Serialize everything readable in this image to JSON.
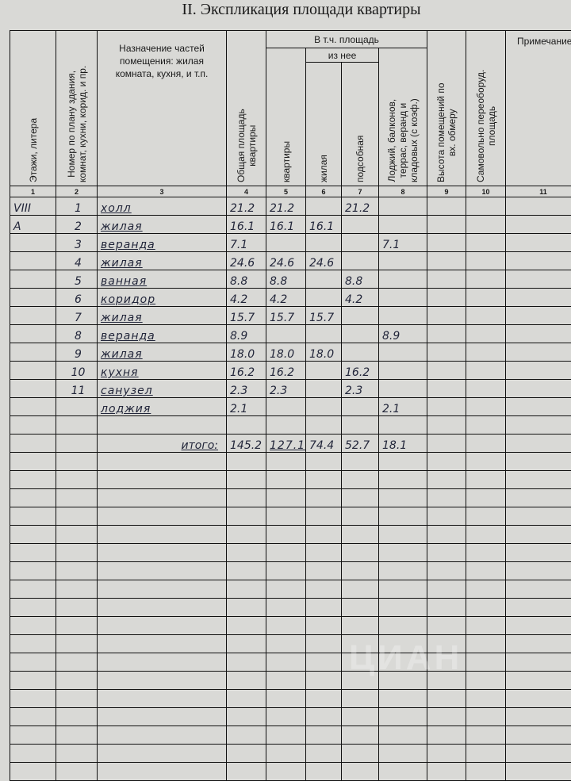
{
  "title": "II. Экспликация площади квартиры",
  "headers": {
    "col1": "Этажи, литера",
    "col2": "Номер по плану здания,\nкомнат, кухни, корид. и пр.",
    "col3": "Назначение частей помещения: жилая комната, кухня, и т.п.",
    "col4": "Общая площадь\nквартиры",
    "group": "В т.ч. площадь",
    "col5": "квартиры",
    "subgroup": "из нее",
    "col6": "жилая",
    "col7": "подсобная",
    "col8": "Лоджий, балконов,\nтеррас, веранд и\nкладовых (с коэф.)",
    "col9": "Высота помещений по\nвх. обмеру",
    "col10": "Самовольно переоборуд.\nплощадь",
    "col11": "Примечание"
  },
  "column_numbers": [
    "1",
    "2",
    "3",
    "4",
    "5",
    "6",
    "7",
    "8",
    "9",
    "10",
    "11"
  ],
  "rows": [
    {
      "floor": "VIII",
      "num": "1",
      "name": "холл",
      "total": "21.2",
      "flat": "21.2",
      "living": "",
      "aux": "21.2",
      "loggia": ""
    },
    {
      "floor": "А",
      "num": "2",
      "name": "жилая",
      "total": "16.1",
      "flat": "16.1",
      "living": "16.1",
      "aux": "",
      "loggia": ""
    },
    {
      "floor": "",
      "num": "3",
      "name": "веранда",
      "total": "7.1",
      "flat": "",
      "living": "",
      "aux": "",
      "loggia": "7.1"
    },
    {
      "floor": "",
      "num": "4",
      "name": "жилая",
      "total": "24.6",
      "flat": "24.6",
      "living": "24.6",
      "aux": "",
      "loggia": ""
    },
    {
      "floor": "",
      "num": "5",
      "name": "ванная",
      "total": "8.8",
      "flat": "8.8",
      "living": "",
      "aux": "8.8",
      "loggia": ""
    },
    {
      "floor": "",
      "num": "6",
      "name": "коридор",
      "total": "4.2",
      "flat": "4.2",
      "living": "",
      "aux": "4.2",
      "loggia": ""
    },
    {
      "floor": "",
      "num": "7",
      "name": "жилая",
      "total": "15.7",
      "flat": "15.7",
      "living": "15.7",
      "aux": "",
      "loggia": ""
    },
    {
      "floor": "",
      "num": "8",
      "name": "веранда",
      "total": "8.9",
      "flat": "",
      "living": "",
      "aux": "",
      "loggia": "8.9"
    },
    {
      "floor": "",
      "num": "9",
      "name": "жилая",
      "total": "18.0",
      "flat": "18.0",
      "living": "18.0",
      "aux": "",
      "loggia": ""
    },
    {
      "floor": "",
      "num": "10",
      "name": "кухня",
      "total": "16.2",
      "flat": "16.2",
      "living": "",
      "aux": "16.2",
      "loggia": ""
    },
    {
      "floor": "",
      "num": "11",
      "name": "санузел",
      "total": "2.3",
      "flat": "2.3",
      "living": "",
      "aux": "2.3",
      "loggia": ""
    },
    {
      "floor": "",
      "num": "",
      "name": "лоджия",
      "total": "2.1",
      "flat": "",
      "living": "",
      "aux": "",
      "loggia": "2.1"
    }
  ],
  "totals": {
    "label": "итого:",
    "total": "145.2",
    "flat": "127.1",
    "living": "74.4",
    "aux": "52.7",
    "loggia": "18.1"
  },
  "watermark": "ЦИАН",
  "colors": {
    "paper": "#d9d9d6",
    "ink": "#22263a",
    "lines": "#111111"
  }
}
